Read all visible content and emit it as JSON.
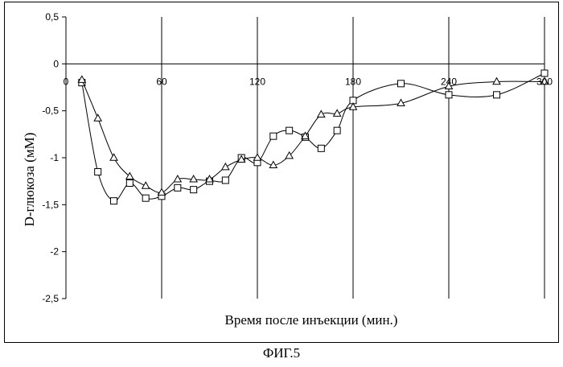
{
  "figure": {
    "caption": "ФИГ.5"
  },
  "chart_data": {
    "type": "line",
    "title": "",
    "xlabel": "Время после инъекции (мин.)",
    "ylabel": "D-глюкоза (мМ)",
    "xlim": [
      0,
      300
    ],
    "ylim": [
      -2.5,
      0.5
    ],
    "x_ticks": [
      0,
      60,
      120,
      180,
      240,
      300
    ],
    "x_tick_labels": [
      "0",
      "60",
      "120",
      "180",
      "240",
      "300"
    ],
    "y_ticks": [
      0.5,
      0,
      -0.5,
      -1,
      -1.5,
      -2,
      -2.5
    ],
    "y_tick_labels": [
      "0,5",
      "0",
      "-0,5",
      "-1",
      "-1,5",
      "-2",
      "-2,5"
    ],
    "grid": "vertical",
    "legend": "none",
    "series": [
      {
        "marker": "square",
        "x": [
          10,
          20,
          30,
          40,
          50,
          60,
          70,
          80,
          90,
          100,
          110,
          120,
          130,
          140,
          150,
          160,
          170,
          180,
          210,
          240,
          270,
          300
        ],
        "y": [
          -0.2,
          -1.15,
          -1.46,
          -1.27,
          -1.43,
          -1.41,
          -1.32,
          -1.34,
          -1.25,
          -1.24,
          -1.0,
          -1.05,
          -0.77,
          -0.71,
          -0.78,
          -0.9,
          -0.71,
          -0.39,
          -0.21,
          -0.33,
          -0.33,
          -0.1
        ]
      },
      {
        "marker": "triangle",
        "x": [
          10,
          20,
          30,
          40,
          50,
          60,
          70,
          80,
          90,
          100,
          110,
          120,
          130,
          140,
          150,
          160,
          170,
          180,
          210,
          240,
          270,
          300
        ],
        "y": [
          -0.17,
          -0.58,
          -1.0,
          -1.2,
          -1.3,
          -1.37,
          -1.23,
          -1.23,
          -1.23,
          -1.1,
          -1.02,
          -1.0,
          -1.08,
          -0.98,
          -0.77,
          -0.54,
          -0.53,
          -0.46,
          -0.42,
          -0.24,
          -0.19,
          -0.19
        ]
      }
    ]
  }
}
